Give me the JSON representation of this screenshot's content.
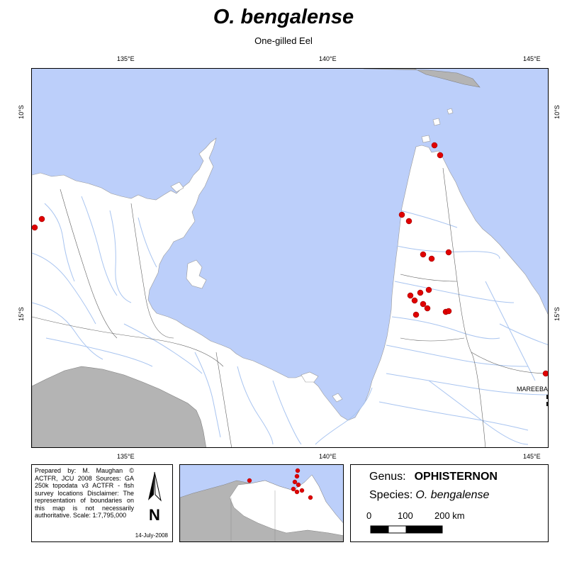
{
  "title": "O. bengalense",
  "subtitle": "One-gilled Eel",
  "graticule": {
    "top_labels": [
      "135°E",
      "140°E",
      "145°E"
    ],
    "bottom_labels": [
      "135°E",
      "140°E",
      "145°E"
    ],
    "left_labels": [
      "10°S",
      "15°S"
    ],
    "right_labels": [
      "10°S",
      "15°S"
    ]
  },
  "map": {
    "place_label": "MAREEBA",
    "colors": {
      "sea": "#bccffa",
      "land": "#ffffff",
      "neighbor_land": "#b4b4b4",
      "river": "#a8c4f0",
      "boundary": "#606060",
      "record": "#e00000"
    }
  },
  "credits": {
    "text": "Prepared by: M. Maughan © ACTFR, JCU 2008 Sources: GA 250k topodata v3 ACTFR - fish survey locations Disclaimer: The representation of boundaries on this map is not necessarily authoritative. Scale: 1:7,795,000",
    "date": "14-July-2008",
    "north_arrow_letter": "N"
  },
  "legend": {
    "genus_label": "Genus:",
    "genus_value": "OPHISTERNON",
    "species_label": "Species:",
    "species_value": "O. bengalense",
    "scale_labels": [
      "0",
      "100",
      "200 km"
    ]
  }
}
